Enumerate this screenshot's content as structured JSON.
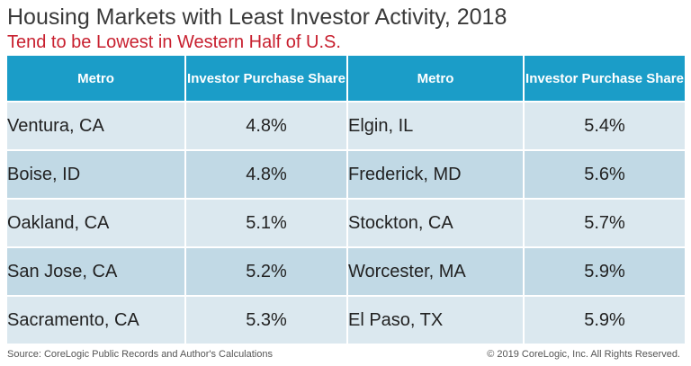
{
  "title": "Housing Markets with Least Investor Activity, 2018",
  "subtitle": "Tend to be Lowest in Western Half of U.S.",
  "footer": {
    "source": "Source: CoreLogic Public Records and Author's Calculations",
    "copyright": "© 2019 CoreLogic, Inc. All Rights Reserved."
  },
  "chart_data": {
    "type": "table",
    "title": "Housing Markets with Least Investor Activity, 2018",
    "subtitle": "Tend to be Lowest in Western Half of U.S.",
    "columns": [
      "Metro",
      "Investor Purchase Share",
      "Metro",
      "Investor Purchase Share"
    ],
    "rows": [
      [
        "Ventura, CA",
        "4.8%",
        "Elgin, IL",
        "5.4%"
      ],
      [
        "Boise, ID",
        "4.8%",
        "Frederick, MD",
        "5.6%"
      ],
      [
        "Oakland, CA",
        "5.1%",
        "Stockton, CA",
        "5.7%"
      ],
      [
        "San Jose, CA",
        "5.2%",
        "Worcester, MA",
        "5.9%"
      ],
      [
        "Sacramento, CA",
        "5.3%",
        "El Paso, TX",
        "5.9%"
      ]
    ],
    "header_color": "#1b9dc8",
    "row_colors": [
      "#dbe8ef",
      "#c1d9e5"
    ]
  }
}
